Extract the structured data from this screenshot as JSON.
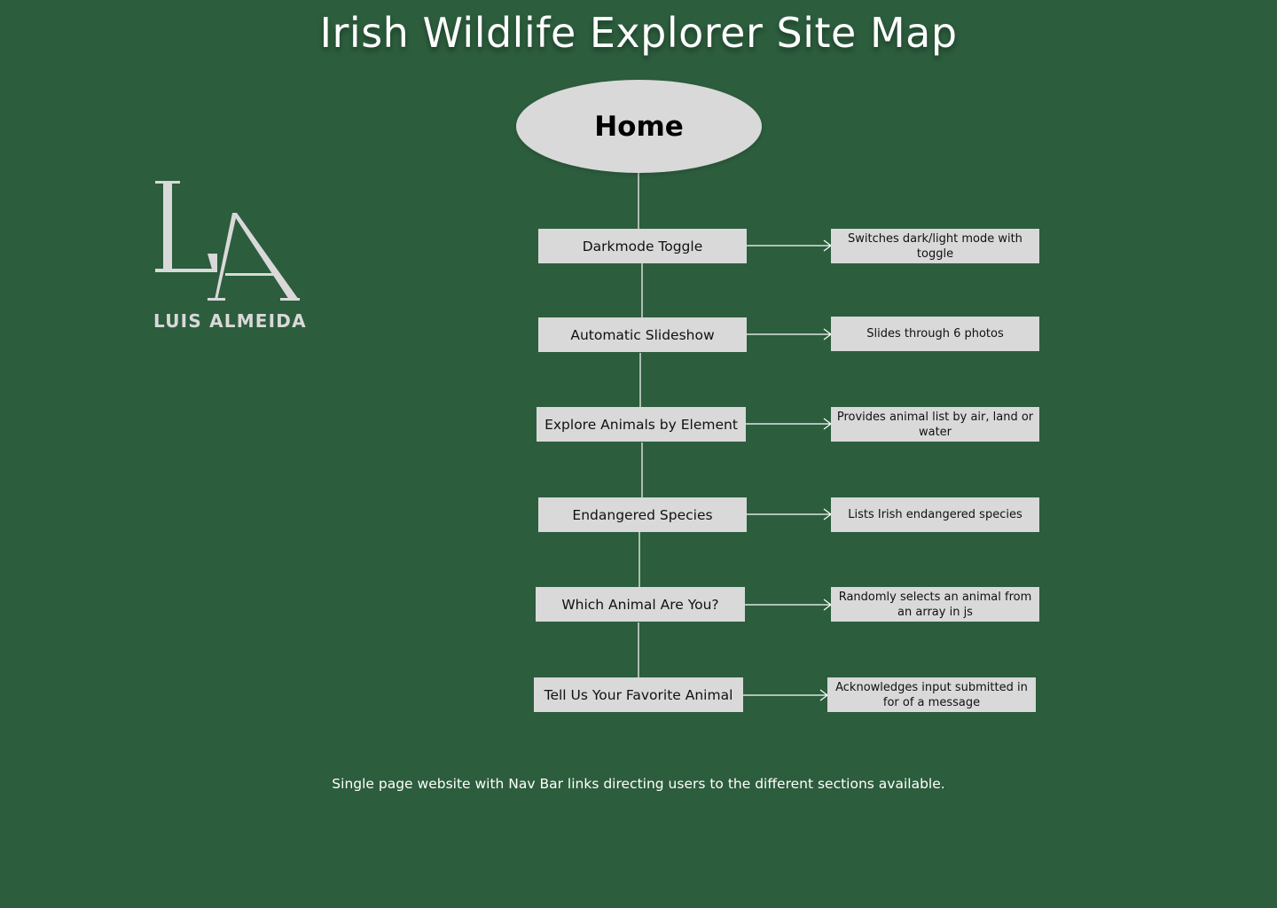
{
  "title": "Irish Wildlife Explorer Site Map",
  "root": {
    "label": "Home"
  },
  "logo": {
    "name": "LUIS ALMEIDA",
    "monogram": "LA"
  },
  "features": [
    {
      "label": "Darkmode Toggle",
      "description": "Switches dark/light mode with toggle"
    },
    {
      "label": "Automatic Slideshow",
      "description": "Slides through 6 photos"
    },
    {
      "label": "Explore Animals by Element",
      "description": "Provides animal list by air, land or water"
    },
    {
      "label": "Endangered Species",
      "description": "Lists Irish endangered species"
    },
    {
      "label": "Which Animal Are You?",
      "description": "Randomly selects an animal from an array in js"
    },
    {
      "label": "Tell Us Your Favorite Animal",
      "description": "Acknowledges input submitted in for of a message"
    }
  ],
  "footnote": "Single page website with Nav Bar links directing users to the different sections available.",
  "colors": {
    "background": "#2c5d3d",
    "node": "#d9d9d9",
    "connector": "#ffffff",
    "title": "#ffffff"
  }
}
